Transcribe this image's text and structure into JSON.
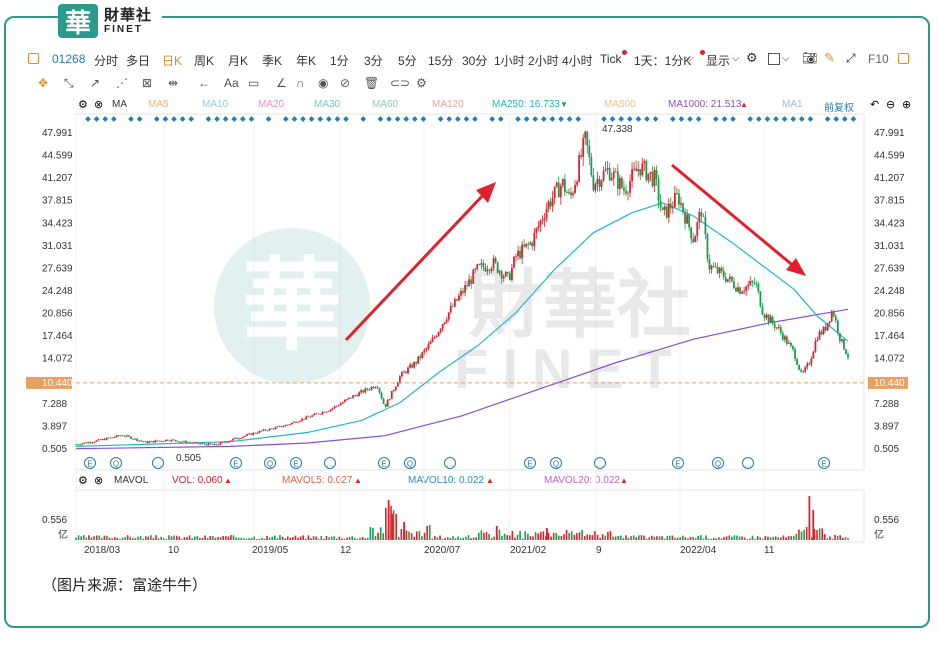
{
  "brand": {
    "mark": "華",
    "name_cn": "財華社",
    "name_en": "FINET"
  },
  "toolbar": {
    "code": "01268",
    "periods": [
      "分时",
      "多日",
      "日K",
      "周K",
      "月K",
      "季K",
      "年K",
      "1分",
      "3分",
      "5分",
      "15分",
      "30分",
      "1小时",
      "2小时",
      "4小时",
      "Tick",
      "1天：1分K"
    ],
    "active_period": "日K",
    "display": "显示",
    "f10": "F10"
  },
  "toolbar2": {
    "text_tool": "Aa"
  },
  "ma_bar": {
    "label": "MA",
    "items": [
      {
        "label": "MA5",
        "color": "#f0b070"
      },
      {
        "label": "MA10",
        "color": "#90c8ec"
      },
      {
        "label": "MA20",
        "color": "#f090c0"
      },
      {
        "label": "MA30",
        "color": "#70c8d8"
      },
      {
        "label": "MA60",
        "color": "#8cd0a0"
      },
      {
        "label": "MA120",
        "color": "#f0a0a0"
      },
      {
        "label": "MA250: 16.733",
        "color": "#1fb8d0"
      },
      {
        "label": "MA500",
        "color": "#f0c090"
      },
      {
        "label": "MA1000: 21.513",
        "color": "#8a4fd0"
      },
      {
        "label": "MA1",
        "color": "#a0b8d8"
      }
    ],
    "adjust": "前复权"
  },
  "vol_bar": {
    "label": "MAVOL",
    "vol": "VOL: 0.060",
    "mavol5": "MAVOL5: 0.027",
    "mavol10": "MAVOL10: 0.022",
    "mavol20": "MAVOL20: 0.022"
  },
  "chart_data": {
    "type": "candlestick",
    "y_ticks": [
      "47.991",
      "44.599",
      "41.207",
      "37.815",
      "34.423",
      "31.031",
      "27.639",
      "24.248",
      "20.856",
      "17.464",
      "14.072",
      "10.440",
      "7.288",
      "3.897",
      "0.505"
    ],
    "ylim": [
      0.505,
      47.991
    ],
    "current_price": "10.440",
    "max_label": "47.338",
    "min_label": "0.505",
    "x_labels": [
      "2018/03",
      "10",
      "2019/05",
      "12",
      "2020/07",
      "2021/02",
      "9",
      "2022/04",
      "11"
    ],
    "volume_ticks": [
      "0.556",
      "亿"
    ],
    "price_series": [
      [
        0.0,
        1.2
      ],
      [
        0.03,
        1.8
      ],
      [
        0.06,
        2.6
      ],
      [
        0.09,
        1.5
      ],
      [
        0.12,
        1.9
      ],
      [
        0.15,
        1.4
      ],
      [
        0.18,
        1.1
      ],
      [
        0.21,
        2.2
      ],
      [
        0.24,
        3.2
      ],
      [
        0.27,
        4.0
      ],
      [
        0.3,
        5.3
      ],
      [
        0.33,
        6.5
      ],
      [
        0.36,
        8.5
      ],
      [
        0.39,
        10.2
      ],
      [
        0.4,
        6.8
      ],
      [
        0.42,
        11.5
      ],
      [
        0.44,
        13.5
      ],
      [
        0.46,
        16.5
      ],
      [
        0.48,
        20.5
      ],
      [
        0.5,
        24.0
      ],
      [
        0.52,
        27.5
      ],
      [
        0.54,
        28.5
      ],
      [
        0.56,
        26.0
      ],
      [
        0.57,
        29.5
      ],
      [
        0.59,
        31.5
      ],
      [
        0.61,
        37.0
      ],
      [
        0.63,
        40.5
      ],
      [
        0.64,
        38.0
      ],
      [
        0.66,
        47.0
      ],
      [
        0.67,
        40.5
      ],
      [
        0.69,
        42.5
      ],
      [
        0.71,
        39.5
      ],
      [
        0.73,
        43.0
      ],
      [
        0.75,
        41.0
      ],
      [
        0.76,
        35.5
      ],
      [
        0.78,
        38.5
      ],
      [
        0.8,
        32.0
      ],
      [
        0.81,
        36.5
      ],
      [
        0.82,
        28.0
      ],
      [
        0.84,
        26.5
      ],
      [
        0.86,
        24.5
      ],
      [
        0.88,
        25.5
      ],
      [
        0.89,
        21.0
      ],
      [
        0.91,
        18.5
      ],
      [
        0.93,
        15.0
      ],
      [
        0.94,
        11.5
      ],
      [
        0.95,
        13.5
      ],
      [
        0.96,
        17.5
      ],
      [
        0.97,
        18.5
      ],
      [
        0.98,
        21.5
      ],
      [
        0.99,
        17.0
      ],
      [
        1.0,
        14.5
      ],
      [
        1.01,
        11.0
      ]
    ],
    "ma250": [
      [
        0.0,
        0.9
      ],
      [
        0.2,
        1.6
      ],
      [
        0.3,
        3.0
      ],
      [
        0.37,
        4.8
      ],
      [
        0.42,
        7.5
      ],
      [
        0.47,
        12.0
      ],
      [
        0.52,
        16.0
      ],
      [
        0.57,
        21.0
      ],
      [
        0.62,
        27.5
      ],
      [
        0.67,
        33.0
      ],
      [
        0.72,
        36.0
      ],
      [
        0.76,
        37.5
      ],
      [
        0.8,
        35.5
      ],
      [
        0.85,
        31.5
      ],
      [
        0.89,
        28.0
      ],
      [
        0.93,
        24.5
      ],
      [
        0.96,
        20.5
      ],
      [
        1.0,
        16.7
      ]
    ],
    "ma1000": [
      [
        0.0,
        0.55
      ],
      [
        0.2,
        0.9
      ],
      [
        0.3,
        1.4
      ],
      [
        0.4,
        2.5
      ],
      [
        0.5,
        5.5
      ],
      [
        0.6,
        9.5
      ],
      [
        0.7,
        13.5
      ],
      [
        0.8,
        17.0
      ],
      [
        0.9,
        19.5
      ],
      [
        1.0,
        21.5
      ]
    ],
    "colors": {
      "up": "#e0202a",
      "down": "#13a04a",
      "ma250": "#1fb8d0",
      "ma1000": "#8a4fd0",
      "price_line": "#e8a060"
    }
  },
  "source_text": "（图片来源：富途牛牛）"
}
